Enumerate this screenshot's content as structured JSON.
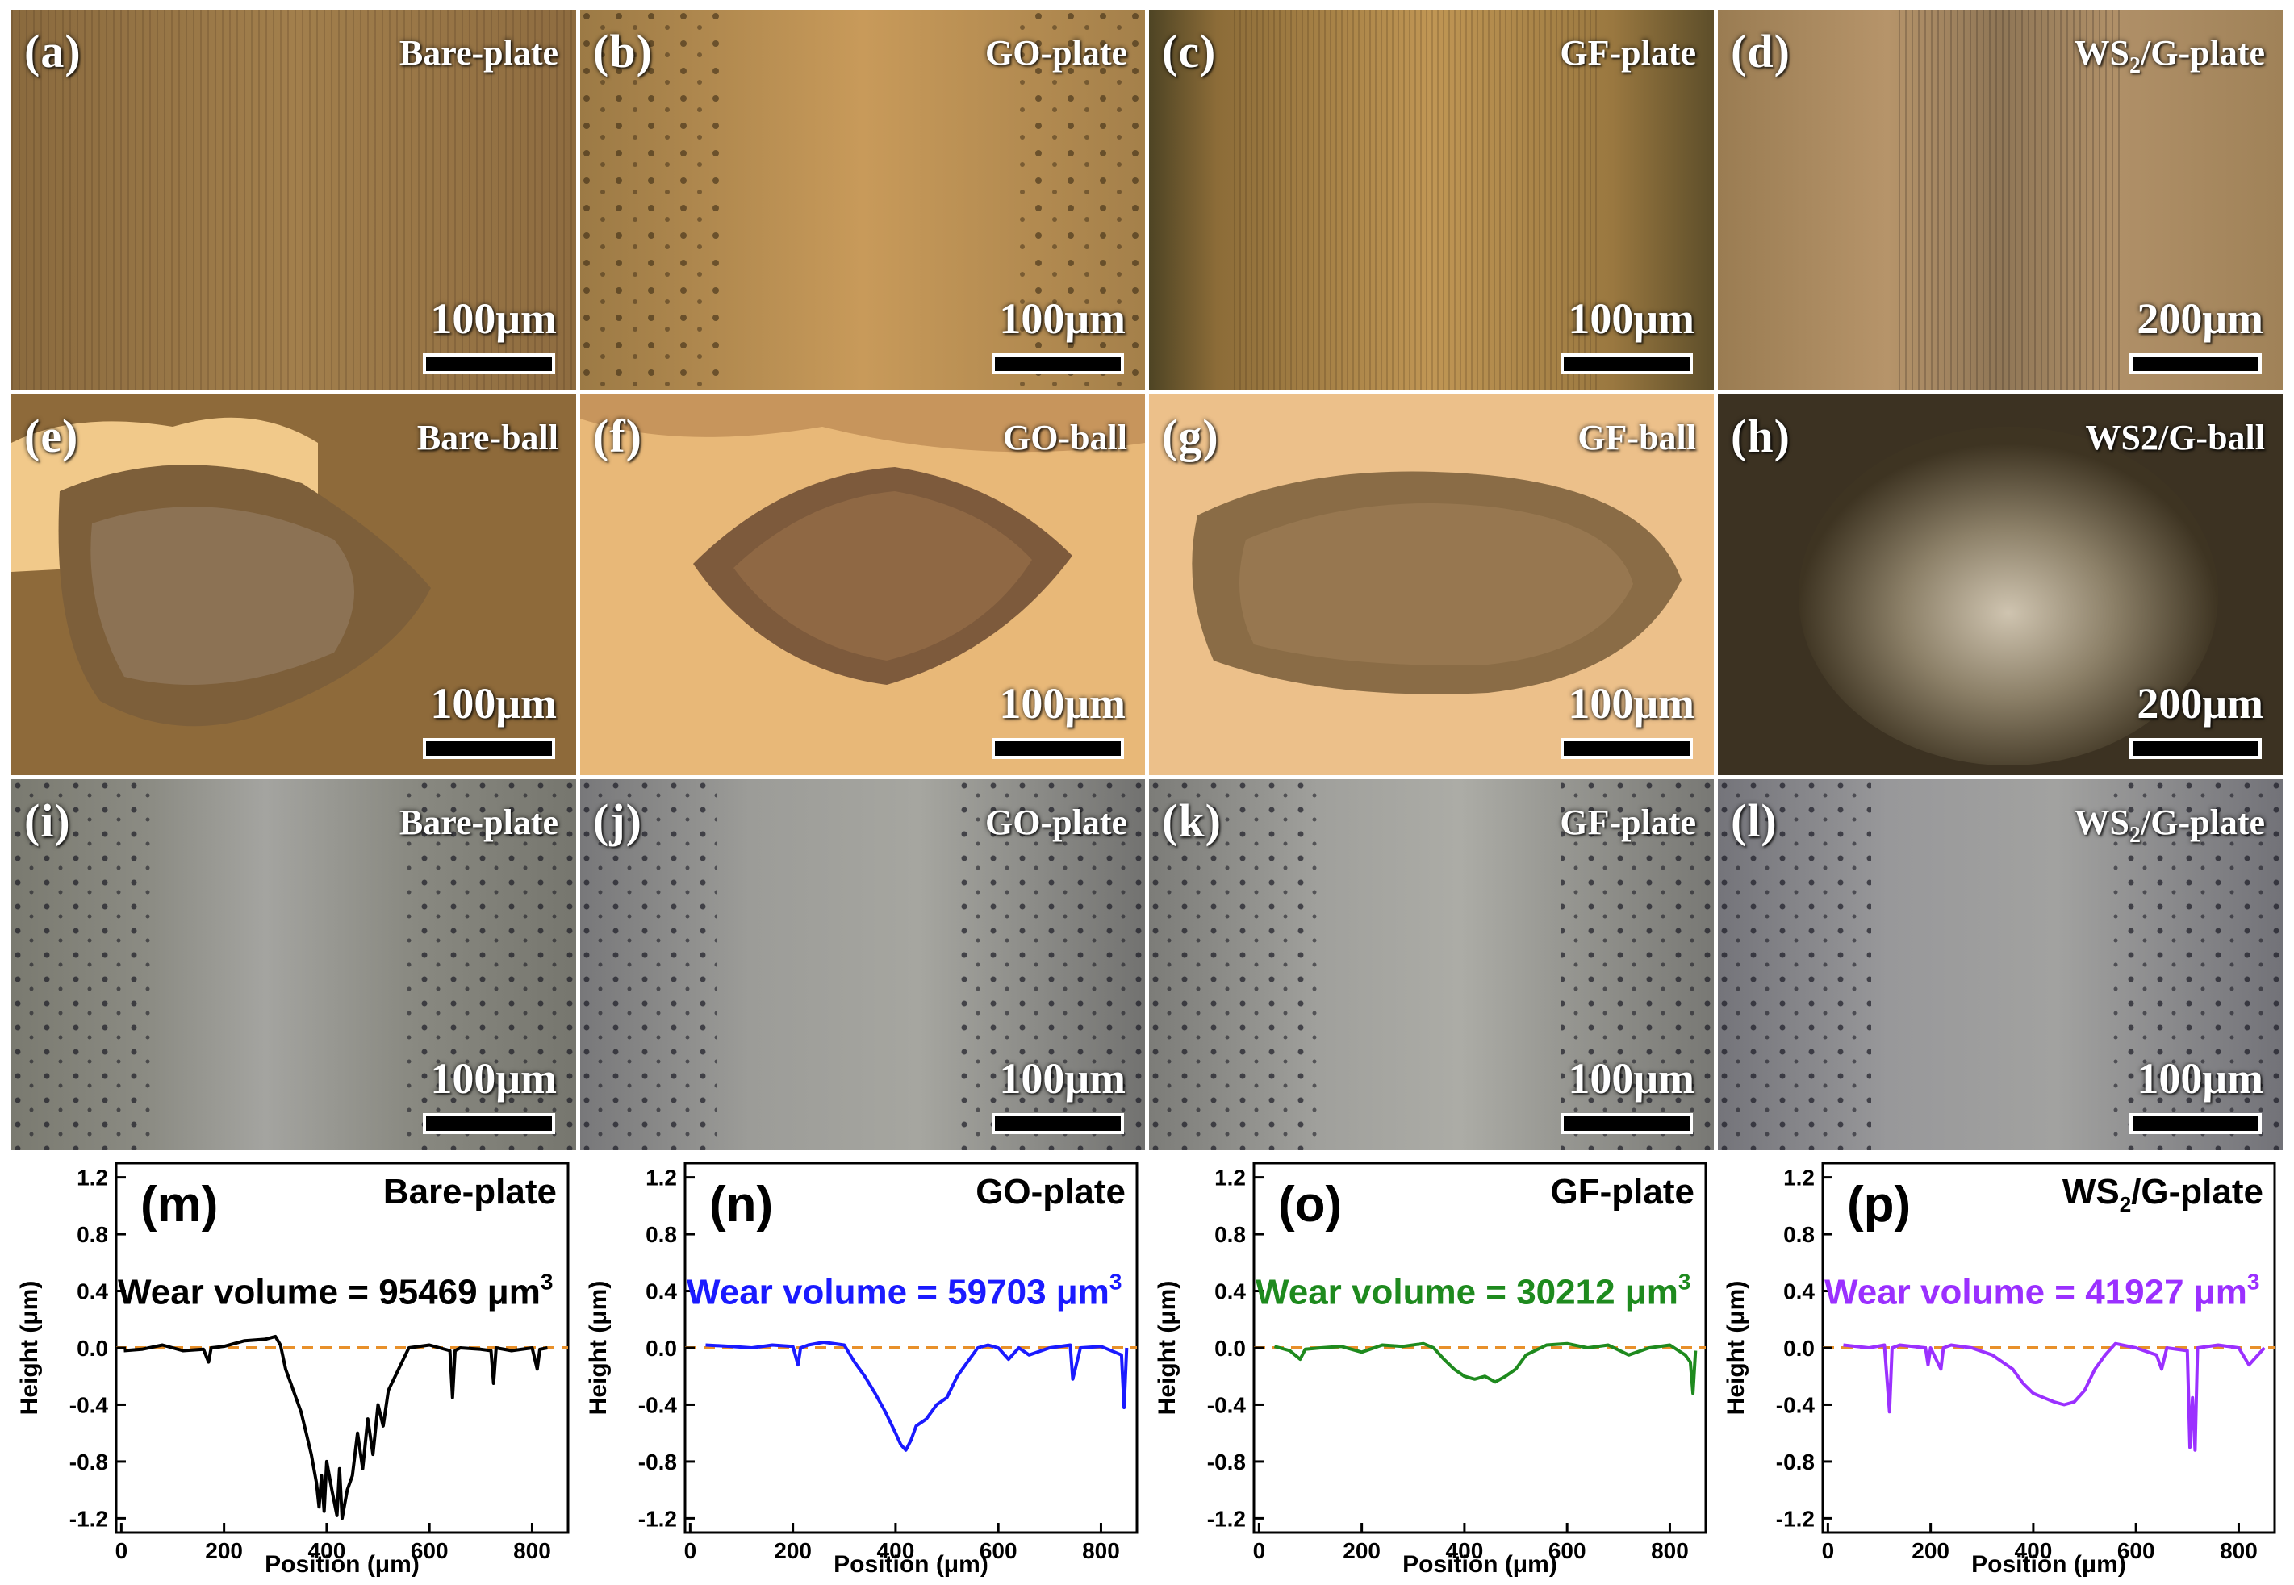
{
  "colors": {
    "baseline": "#e8902a",
    "axis": "#000000"
  },
  "micrograph_rows": [
    {
      "tint": "yellow-orange optical micrograph",
      "panels": [
        {
          "label": "(a)",
          "title": "Bare-plate",
          "scale": "100μm"
        },
        {
          "label": "(b)",
          "title": "GO-plate",
          "scale": "100μm"
        },
        {
          "label": "(c)",
          "title": "GF-plate",
          "scale": "100μm"
        },
        {
          "label": "(d)",
          "title": "WS",
          "title_sub": "2",
          "title_rest": "/G-plate",
          "scale": "200μm"
        }
      ]
    },
    {
      "tint": "ball wear scar micrograph",
      "panels": [
        {
          "label": "(e)",
          "title": "Bare-ball",
          "scale": "100μm"
        },
        {
          "label": "(f)",
          "title": "GO-ball",
          "scale": "100μm"
        },
        {
          "label": "(g)",
          "title": "GF-ball",
          "scale": "100μm"
        },
        {
          "label": "(h)",
          "title": "WS2/G-ball",
          "scale": "200μm"
        }
      ]
    },
    {
      "tint": "grey plate micrograph",
      "panels": [
        {
          "label": "(i)",
          "title": "Bare-plate",
          "scale": "100μm"
        },
        {
          "label": "(j)",
          "title": "GO-plate",
          "scale": "100μm"
        },
        {
          "label": "(k)",
          "title": "GF-plate",
          "scale": "100μm"
        },
        {
          "label": "(l)",
          "title": "WS",
          "title_sub": "2",
          "title_rest": "/G-plate",
          "scale": "100μm"
        }
      ]
    }
  ],
  "chart_data": [
    {
      "type": "line",
      "label": "(m)",
      "title": "Bare-plate",
      "annotation": {
        "prefix": "Wear volume = 95469 μm",
        "sup": "3"
      },
      "color": "#000000",
      "xlabel": "Position (μm)",
      "ylabel": "Height (μm)",
      "xlim": [
        -10,
        870
      ],
      "ylim": [
        -1.3,
        1.3
      ],
      "xticks": [
        0,
        200,
        400,
        600,
        800
      ],
      "yticks": [
        1.2,
        0.8,
        0.4,
        0.0,
        -0.4,
        -0.8,
        -1.2
      ],
      "ytick_labels": [
        "1.2",
        "0.8",
        "0.4",
        "0.0",
        "-0.4",
        "-0.8",
        "-1.2"
      ],
      "baseline": 0.0,
      "x": [
        5,
        40,
        80,
        120,
        160,
        170,
        175,
        200,
        240,
        280,
        300,
        310,
        320,
        330,
        340,
        350,
        360,
        370,
        380,
        385,
        390,
        395,
        400,
        410,
        420,
        425,
        430,
        440,
        450,
        460,
        470,
        480,
        490,
        500,
        510,
        520,
        540,
        560,
        600,
        640,
        645,
        650,
        660,
        700,
        720,
        725,
        730,
        760,
        800,
        810,
        815,
        830
      ],
      "y": [
        -0.02,
        -0.01,
        0.02,
        -0.02,
        -0.01,
        -0.1,
        0.0,
        0.01,
        0.05,
        0.06,
        0.08,
        0.02,
        -0.15,
        -0.25,
        -0.35,
        -0.45,
        -0.6,
        -0.75,
        -0.95,
        -1.12,
        -0.9,
        -1.15,
        -0.8,
        -1.0,
        -1.18,
        -0.85,
        -1.2,
        -1.0,
        -0.9,
        -0.6,
        -0.85,
        -0.5,
        -0.75,
        -0.4,
        -0.55,
        -0.3,
        -0.15,
        0.0,
        0.02,
        -0.02,
        -0.35,
        -0.02,
        0.0,
        -0.01,
        -0.02,
        -0.25,
        0.0,
        -0.02,
        0.0,
        -0.15,
        -0.01,
        0.0
      ]
    },
    {
      "type": "line",
      "label": "(n)",
      "title": "GO-plate",
      "annotation": {
        "prefix": "Wear volume = 59703 μm",
        "sup": "3"
      },
      "color": "#1a1aff",
      "xlabel": "Position (μm)",
      "ylabel": "Height (μm)",
      "xlim": [
        -10,
        870
      ],
      "ylim": [
        -1.3,
        1.3
      ],
      "xticks": [
        0,
        200,
        400,
        600,
        800
      ],
      "yticks": [
        1.2,
        0.8,
        0.4,
        0.0,
        -0.4,
        -0.8,
        -1.2
      ],
      "ytick_labels": [
        "1.2",
        "0.8",
        "0.4",
        "0.0",
        "-0.4",
        "-0.8",
        "-1.2"
      ],
      "baseline": 0.0,
      "x": [
        30,
        80,
        120,
        160,
        200,
        210,
        215,
        230,
        260,
        300,
        320,
        340,
        360,
        380,
        400,
        410,
        420,
        430,
        440,
        460,
        480,
        500,
        520,
        540,
        560,
        580,
        600,
        620,
        640,
        660,
        700,
        740,
        745,
        760,
        800,
        840,
        845,
        850
      ],
      "y": [
        0.02,
        0.01,
        0.0,
        0.02,
        0.01,
        -0.12,
        0.0,
        0.02,
        0.04,
        0.02,
        -0.1,
        -0.2,
        -0.32,
        -0.45,
        -0.6,
        -0.68,
        -0.72,
        -0.65,
        -0.55,
        -0.5,
        -0.4,
        -0.35,
        -0.2,
        -0.1,
        0.0,
        0.02,
        0.0,
        -0.08,
        0.0,
        -0.05,
        0.0,
        0.02,
        -0.22,
        0.0,
        0.01,
        -0.05,
        -0.42,
        0.0
      ]
    },
    {
      "type": "line",
      "label": "(o)",
      "title": "GF-plate",
      "annotation": {
        "prefix": "Wear volume = 30212 μm",
        "sup": "3"
      },
      "color": "#1e8a1e",
      "xlabel": "Position (μm)",
      "ylabel": "Height (μm)",
      "xlim": [
        -10,
        870
      ],
      "ylim": [
        -1.3,
        1.3
      ],
      "xticks": [
        0,
        200,
        400,
        600,
        800
      ],
      "yticks": [
        1.2,
        0.8,
        0.4,
        0.0,
        -0.4,
        -0.8,
        -1.2
      ],
      "ytick_labels": [
        "1.2",
        "0.8",
        "0.4",
        "0.0",
        "-0.4",
        "-0.8",
        "-1.2"
      ],
      "baseline": 0.0,
      "x": [
        30,
        60,
        80,
        90,
        120,
        160,
        200,
        240,
        280,
        320,
        340,
        360,
        380,
        400,
        420,
        440,
        460,
        480,
        500,
        520,
        560,
        600,
        640,
        680,
        720,
        760,
        800,
        830,
        840,
        845,
        850
      ],
      "y": [
        0.01,
        -0.02,
        -0.08,
        -0.01,
        0.0,
        0.01,
        -0.03,
        0.02,
        0.01,
        0.03,
        0.0,
        -0.08,
        -0.15,
        -0.2,
        -0.22,
        -0.2,
        -0.24,
        -0.2,
        -0.15,
        -0.05,
        0.02,
        0.03,
        0.0,
        0.02,
        -0.05,
        0.0,
        0.02,
        -0.05,
        -0.1,
        -0.32,
        -0.02
      ]
    },
    {
      "type": "line",
      "label": "(p)",
      "title": "WS2/G-plate",
      "title_parts": {
        "a": "WS",
        "sub": "2",
        "b": "/G-plate"
      },
      "annotation": {
        "prefix": "Wear volume = 41927 μm",
        "sup": "3"
      },
      "color": "#9b30ff",
      "xlabel": "Position (μm)",
      "ylabel": "Height (μm)",
      "xlim": [
        -10,
        870
      ],
      "ylim": [
        -1.3,
        1.3
      ],
      "xticks": [
        0,
        200,
        400,
        600,
        800
      ],
      "yticks": [
        1.2,
        0.8,
        0.4,
        0.0,
        -0.4,
        -0.8,
        -1.2
      ],
      "ytick_labels": [
        "1.2",
        "0.8",
        "0.4",
        "0.0",
        "-0.4",
        "-0.8",
        "-1.2"
      ],
      "baseline": 0.0,
      "x": [
        30,
        80,
        110,
        120,
        125,
        140,
        190,
        195,
        200,
        220,
        225,
        240,
        280,
        320,
        360,
        380,
        400,
        420,
        440,
        460,
        480,
        500,
        520,
        540,
        560,
        600,
        640,
        650,
        660,
        700,
        705,
        710,
        715,
        720,
        760,
        800,
        820,
        850
      ],
      "y": [
        0.02,
        0.0,
        0.02,
        -0.45,
        0.0,
        0.02,
        0.0,
        -0.12,
        0.0,
        -0.15,
        0.0,
        0.02,
        0.0,
        -0.05,
        -0.15,
        -0.25,
        -0.32,
        -0.35,
        -0.38,
        -0.4,
        -0.38,
        -0.3,
        -0.15,
        -0.05,
        0.03,
        0.0,
        -0.05,
        -0.15,
        0.0,
        -0.02,
        -0.7,
        -0.35,
        -0.72,
        0.0,
        0.02,
        0.0,
        -0.12,
        0.0
      ]
    }
  ]
}
